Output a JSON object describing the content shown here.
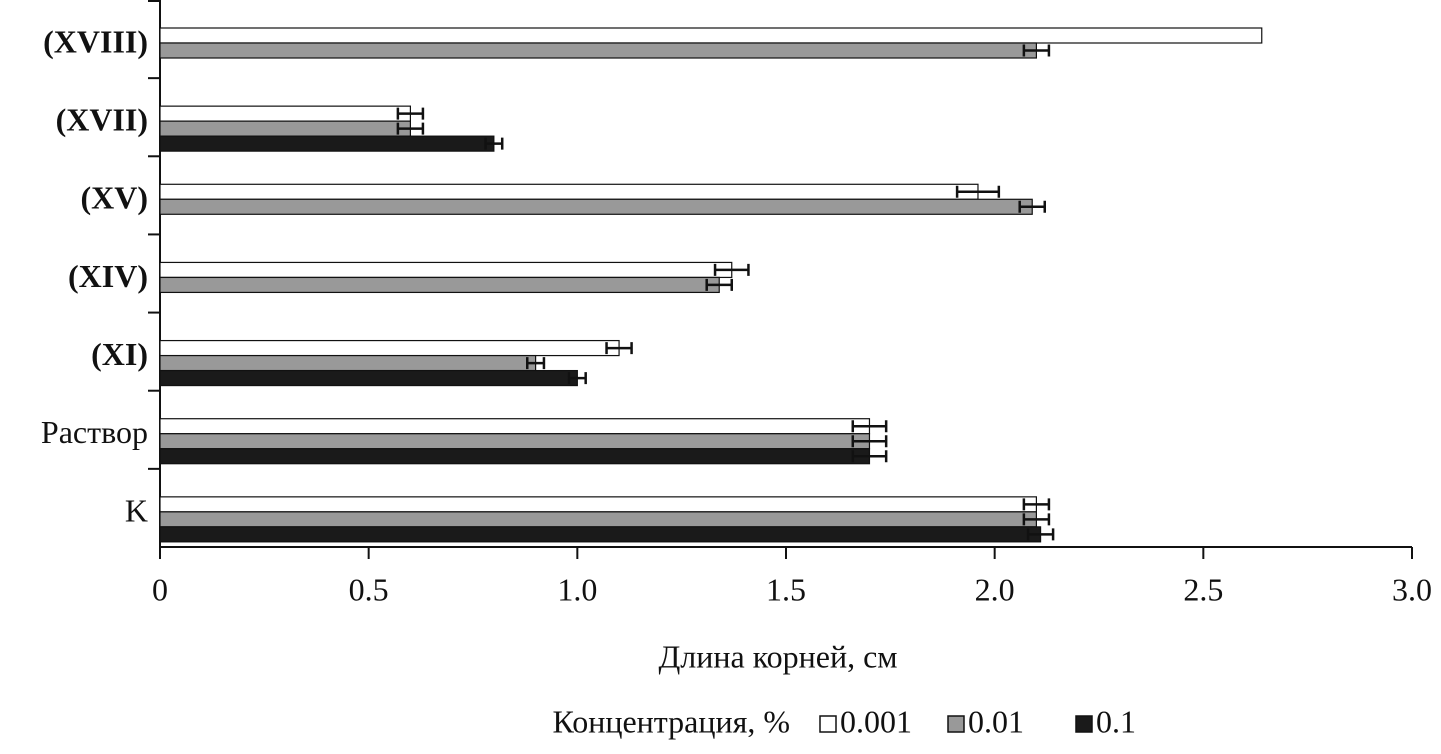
{
  "chart_data": {
    "type": "barh",
    "categories": [
      "(XVIII)",
      "(XVII)",
      "(XV)",
      "(XIV)",
      "(XI)",
      "Раствор",
      "K"
    ],
    "series": [
      {
        "name": "0.001",
        "color": "#ffffff",
        "values": [
          2.64,
          0.6,
          1.96,
          1.37,
          1.1,
          1.7,
          2.1
        ],
        "errors": [
          null,
          0.03,
          0.05,
          0.04,
          0.03,
          0.04,
          0.03
        ]
      },
      {
        "name": "0.01",
        "color": "#999999",
        "values": [
          2.1,
          0.6,
          2.09,
          1.34,
          0.9,
          1.7,
          2.1
        ],
        "errors": [
          0.03,
          0.03,
          0.03,
          0.03,
          0.02,
          0.04,
          0.03
        ]
      },
      {
        "name": "0.1",
        "color": "#1a1a1a",
        "values": [
          null,
          0.8,
          null,
          null,
          1.0,
          1.7,
          2.11
        ],
        "errors": [
          null,
          0.02,
          null,
          null,
          0.02,
          0.04,
          0.03
        ]
      }
    ],
    "xlabel": "Длина корней, см",
    "legend_title": "Концентрация, %",
    "xlim": [
      0,
      3.0
    ],
    "xticks": [
      0,
      0.5,
      {
        "value": 1.0,
        "label": "1.0"
      },
      1.5,
      {
        "value": 2.0,
        "label": "2.0"
      },
      2.5,
      {
        "value": 3.0,
        "label": "3.0"
      }
    ]
  }
}
